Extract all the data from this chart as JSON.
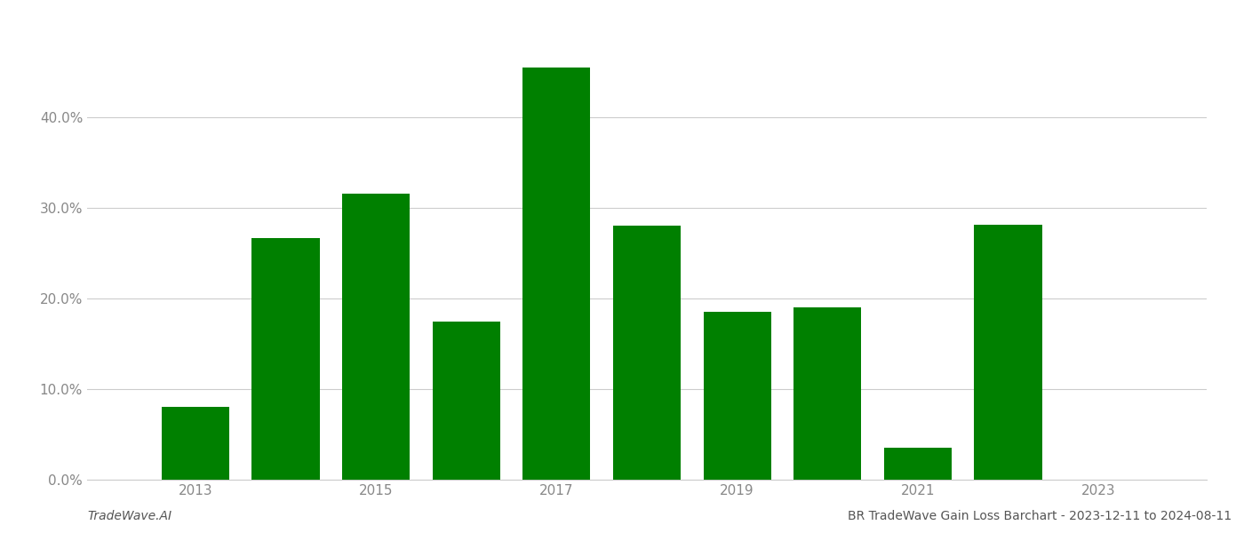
{
  "years": [
    2013,
    2014,
    2015,
    2016,
    2017,
    2018,
    2019,
    2020,
    2021,
    2022
  ],
  "values": [
    0.08,
    0.267,
    0.316,
    0.175,
    0.455,
    0.28,
    0.185,
    0.19,
    0.035,
    0.281
  ],
  "bar_color": "#008000",
  "background_color": "#ffffff",
  "grid_color": "#cccccc",
  "tick_label_color": "#888888",
  "ylabel_ticks": [
    0.0,
    0.1,
    0.2,
    0.3,
    0.4
  ],
  "xtick_labels": [
    "2013",
    "2015",
    "2017",
    "2019",
    "2021",
    "2023"
  ],
  "xtick_positions": [
    2013,
    2015,
    2017,
    2019,
    2021,
    2023
  ],
  "footer_left": "TradeWave.AI",
  "footer_right": "BR TradeWave Gain Loss Barchart - 2023-12-11 to 2024-08-11",
  "ylim": [
    0,
    0.5
  ],
  "xlim": [
    2011.8,
    2024.2
  ],
  "bar_width": 0.75,
  "footer_left_color": "#555555",
  "footer_right_color": "#555555",
  "footer_fontsize": 10,
  "tick_fontsize": 11
}
